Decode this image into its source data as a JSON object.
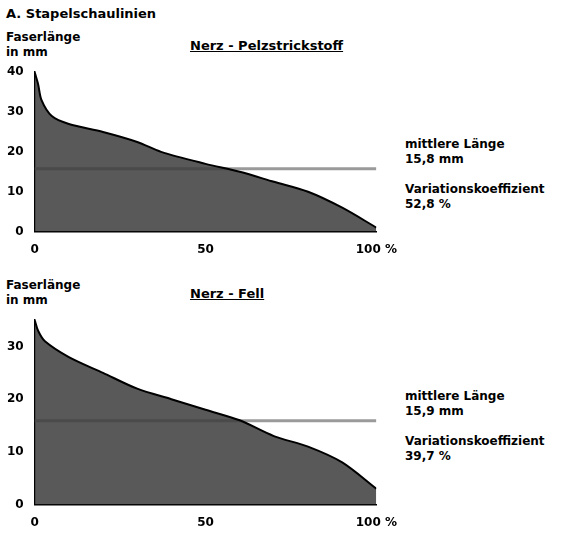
{
  "title": "A. Stapelschaulinien",
  "chart_data": [
    {
      "type": "area",
      "title": "Nerz - Pelzstrickstoff",
      "ylabel": [
        "Faserlänge",
        "in mm"
      ],
      "x": [
        0,
        1,
        2,
        5,
        10,
        20,
        30,
        37,
        50,
        60,
        70,
        80,
        90,
        100
      ],
      "values": [
        40,
        37,
        33,
        29,
        27,
        25,
        22.5,
        20,
        17,
        15,
        12.5,
        10,
        6,
        1
      ],
      "color": "#000000",
      "xlim": [
        0,
        100
      ],
      "xticks": [
        0,
        50,
        {
          "value": 100,
          "label": "100 %"
        }
      ],
      "ylim": [
        0,
        40
      ],
      "yticks": [
        0,
        10,
        20,
        30,
        40
      ],
      "grid": false,
      "mean_label": "mittlere Länge",
      "mean": {
        "value": 15.8,
        "label": "15,8 mm"
      },
      "cv_label": "Variationskoeffizient",
      "cv": {
        "value": 52.8,
        "label": "52,8 %"
      }
    },
    {
      "type": "area",
      "title": "Nerz - Fell",
      "ylabel": [
        "Faserlänge",
        "in mm"
      ],
      "x": [
        0,
        1,
        3,
        10,
        20,
        30,
        40,
        50,
        60,
        70,
        80,
        90,
        100
      ],
      "values": [
        35,
        33,
        31,
        28,
        25,
        22,
        20,
        18,
        16,
        13,
        11,
        8,
        3
      ],
      "color": "#000000",
      "xlim": [
        0,
        100
      ],
      "xticks": [
        0,
        50,
        {
          "value": 100,
          "label": "100 %"
        }
      ],
      "ylim": [
        0,
        35
      ],
      "yticks": [
        0,
        10,
        20,
        30
      ],
      "grid": false,
      "mean_label": "mittlere Länge",
      "mean": {
        "value": 15.9,
        "label": "15,9 mm"
      },
      "cv_label": "Variationskoeffizient",
      "cv": {
        "value": 39.7,
        "label": "39,7 %"
      }
    }
  ]
}
